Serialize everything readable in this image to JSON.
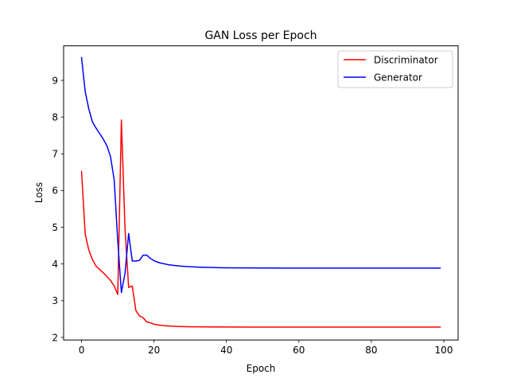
{
  "chart_data": {
    "type": "line",
    "title": "GAN Loss per Epoch",
    "xlabel": "Epoch",
    "ylabel": "Loss",
    "xlim": [
      -4.95,
      103.95
    ],
    "ylim": [
      1.93,
      9.94
    ],
    "xticks": [
      0,
      20,
      40,
      60,
      80,
      100
    ],
    "yticks": [
      2,
      3,
      4,
      5,
      6,
      7,
      8,
      9
    ],
    "grid": false,
    "legend_position": "top-right",
    "series": [
      {
        "name": "Discriminator",
        "color": "#ff0000",
        "x": [
          0,
          1,
          2,
          3,
          4,
          5,
          6,
          7,
          8,
          9,
          10,
          11,
          12,
          13,
          14,
          15,
          16,
          17,
          18,
          19,
          20,
          21,
          22,
          23,
          24,
          25,
          26,
          27,
          28,
          29,
          30,
          32,
          34,
          36,
          38,
          40,
          45,
          50,
          55,
          60,
          65,
          70,
          75,
          80,
          85,
          90,
          95,
          99
        ],
        "y": [
          6.52,
          4.82,
          4.38,
          4.12,
          3.94,
          3.85,
          3.76,
          3.66,
          3.55,
          3.4,
          3.17,
          7.92,
          4.95,
          3.36,
          3.4,
          2.73,
          2.58,
          2.54,
          2.42,
          2.4,
          2.36,
          2.34,
          2.33,
          2.32,
          2.31,
          2.305,
          2.3,
          2.298,
          2.295,
          2.293,
          2.29,
          2.288,
          2.286,
          2.285,
          2.284,
          2.283,
          2.282,
          2.281,
          2.28,
          2.28,
          2.28,
          2.28,
          2.28,
          2.28,
          2.28,
          2.28,
          2.28,
          2.28
        ]
      },
      {
        "name": "Generator",
        "color": "#0000ff",
        "x": [
          0,
          1,
          2,
          3,
          4,
          5,
          6,
          7,
          8,
          9,
          10,
          11,
          12,
          13,
          14,
          15,
          16,
          17,
          18,
          19,
          20,
          21,
          22,
          23,
          24,
          25,
          26,
          27,
          28,
          29,
          30,
          32,
          34,
          36,
          38,
          40,
          45,
          50,
          55,
          60,
          65,
          70,
          75,
          80,
          85,
          90,
          95,
          99
        ],
        "y": [
          9.62,
          8.7,
          8.22,
          7.87,
          7.7,
          7.55,
          7.4,
          7.22,
          6.92,
          6.3,
          4.62,
          3.22,
          3.75,
          4.83,
          4.08,
          4.08,
          4.1,
          4.24,
          4.24,
          4.15,
          4.09,
          4.05,
          4.02,
          4.0,
          3.98,
          3.965,
          3.955,
          3.945,
          3.937,
          3.93,
          3.925,
          3.915,
          3.908,
          3.903,
          3.899,
          3.896,
          3.892,
          3.889,
          3.888,
          3.887,
          3.887,
          3.887,
          3.887,
          3.887,
          3.887,
          3.887,
          3.887,
          3.887
        ]
      }
    ]
  }
}
